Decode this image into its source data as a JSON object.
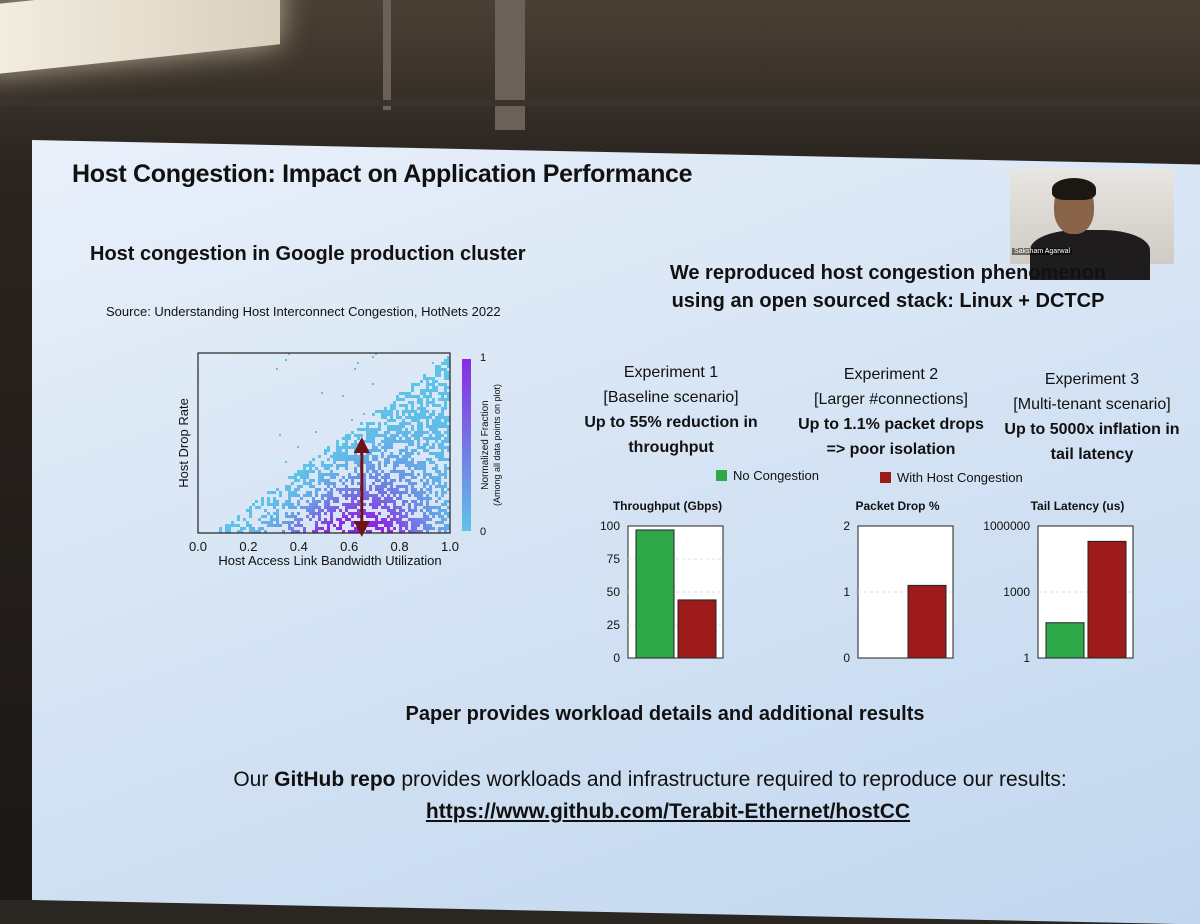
{
  "slide": {
    "title": "Host Congestion: Impact on Application Performance",
    "left_heading": "Host congestion in Google production cluster",
    "source": "Source: Understanding Host Interconnect Congestion, HotNets 2022",
    "right_heading_line1": "We reproduced host congestion phenomenon",
    "right_heading_line2": "using an open sourced stack: Linux + DCTCP",
    "experiments": [
      {
        "name": "Experiment 1",
        "scenario": "[Baseline scenario]",
        "result_line1": "Up to 55% reduction in",
        "result_line2": "throughput"
      },
      {
        "name": "Experiment 2",
        "scenario": "[Larger #connections]",
        "result_line1": "Up to 1.1% packet drops",
        "result_line2": "=> poor isolation"
      },
      {
        "name": "Experiment 3",
        "scenario": "[Multi-tenant scenario]",
        "result_line1": "Up to 5000x inflation in",
        "result_line2": "tail latency"
      }
    ],
    "footer_line1": "Paper provides workload details and additional results",
    "footer_line2_prefix": "Our ",
    "footer_line2_bold": "GitHub repo",
    "footer_line2_suffix": " provides workloads and infrastructure required to reproduce our results:",
    "footer_url": "https://www.github.com/Terabit-Ethernet/hostCC",
    "webcam_name": "Saksham Agarwal"
  },
  "colors": {
    "no_congestion": "#2fa84a",
    "with_congestion": "#9e1b1b",
    "arrow": "#6e1218",
    "heat_low": "#5fc2e8",
    "heat_high": "#8a2be2"
  },
  "chart_data": [
    {
      "type": "heatmap",
      "title": "",
      "xlabel": "Host Access Link Bandwidth Utilization",
      "ylabel": "Host Drop Rate",
      "xlim": [
        0.0,
        1.0
      ],
      "x_ticks": [
        "0.0",
        "0.2",
        "0.4",
        "0.6",
        "0.8",
        "1.0"
      ],
      "colorbar_label_line1": "Normalized Fraction",
      "colorbar_label_line2": "(Among all data points on plot)",
      "colorbar_ticks": [
        "1",
        "0"
      ],
      "annotation": "double-headed arrow at x ≈ 0.65"
    },
    {
      "type": "bar",
      "title": "Throughput (Gbps)",
      "categories": [
        "No Congestion",
        "With Host Congestion"
      ],
      "values": [
        97,
        44
      ],
      "ylim": [
        0,
        100
      ],
      "y_ticks": [
        "100",
        "75",
        "50",
        "25",
        "0"
      ]
    },
    {
      "type": "bar",
      "title": "Packet Drop %",
      "categories": [
        "No Congestion",
        "With Host Congestion"
      ],
      "values": [
        0,
        1.1
      ],
      "ylim": [
        0,
        2
      ],
      "y_ticks": [
        "2",
        "1",
        "0"
      ]
    },
    {
      "type": "bar",
      "title": "Tail Latency (us)",
      "categories": [
        "No Congestion",
        "With Host Congestion"
      ],
      "values": [
        40,
        200000
      ],
      "yscale": "log",
      "ylim": [
        1,
        1000000
      ],
      "y_ticks": [
        "1000000",
        "1000",
        "1"
      ]
    }
  ],
  "legend": {
    "no_congestion": "No Congestion",
    "with_congestion": "With Host Congestion"
  }
}
